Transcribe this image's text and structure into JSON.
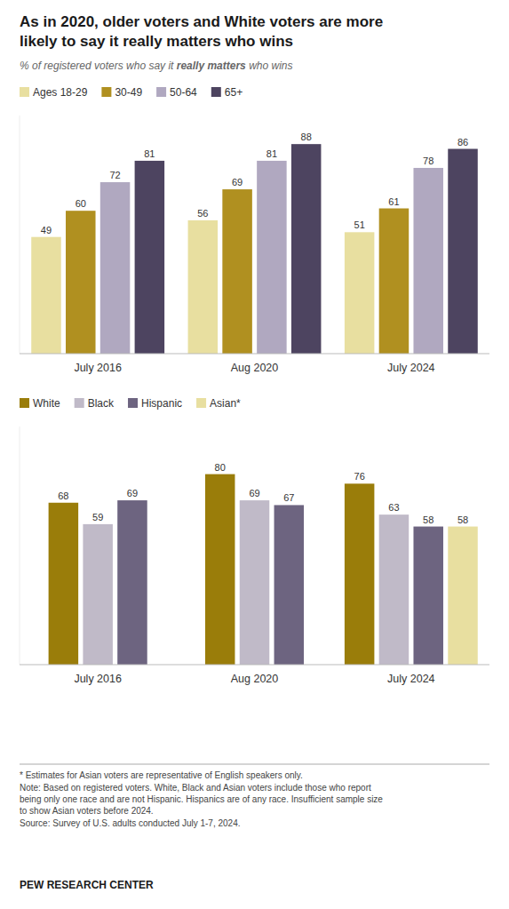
{
  "title": "As in 2020, older voters and White voters are more\nlikely to say it really matters who wins",
  "subtitle": [
    "% of registered voters who say it ",
    "really matters",
    " who wins"
  ],
  "notes": [
    "* Estimates for Asian voters are representative of English speakers only.",
    "Note: Based on registered voters. White, Black and Asian voters include those who report\nbeing only one race and are not Hispanic. Hispanics are of any race. Insufficient sample size\nto show Asian voters before 2024.",
    "Source: Survey of U.S. adults conducted July 1-7, 2024."
  ],
  "source": "PEW RESEARCH CENTER",
  "chart_data": [
    {
      "type": "bar",
      "categories": [
        "July 2016",
        "Aug 2020",
        "July 2024"
      ],
      "series": [
        {
          "name": "Ages 18-29",
          "color": "#e8dfa0",
          "values": [
            49,
            56,
            51
          ]
        },
        {
          "name": "30-49",
          "color": "#b09020",
          "values": [
            60,
            69,
            61
          ]
        },
        {
          "name": "50-64",
          "color": "#b0a8c0",
          "values": [
            72,
            81,
            78
          ]
        },
        {
          "name": "65+",
          "color": "#4d4460",
          "values": [
            81,
            88,
            86
          ]
        }
      ],
      "ylim": [
        0,
        100
      ],
      "grid": false,
      "legend": "top-left",
      "data_labels": true,
      "tick_labels": "x"
    },
    {
      "type": "bar",
      "categories": [
        "July 2016",
        "Aug 2020",
        "July 2024"
      ],
      "series": [
        {
          "name": "White",
          "color": "#9a7d0a",
          "values": [
            68,
            80,
            76
          ]
        },
        {
          "name": "Black",
          "color": "#c0bac8",
          "values": [
            59,
            69,
            63
          ]
        },
        {
          "name": "Hispanic",
          "color": "#6d6480",
          "values": [
            69,
            67,
            58
          ]
        },
        {
          "name": "Asian*",
          "color": "#e8dfa0",
          "values": [
            null,
            null,
            58
          ]
        }
      ],
      "ylim": [
        0,
        100
      ],
      "grid": false,
      "legend": "top-left",
      "data_labels": true,
      "tick_labels": "x"
    }
  ]
}
